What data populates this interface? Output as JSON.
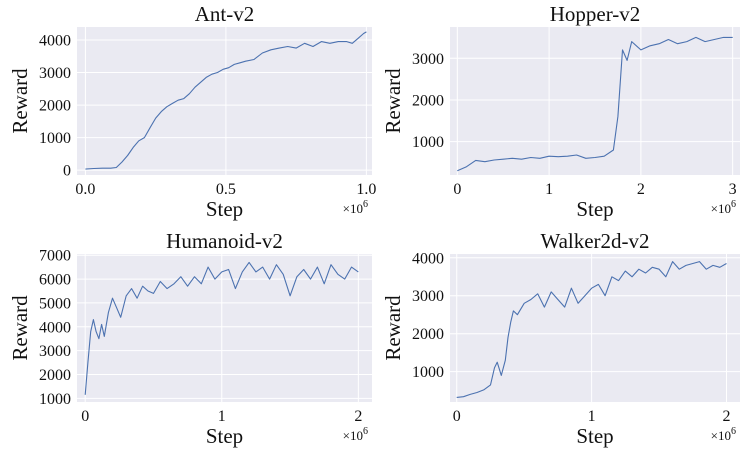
{
  "colors": {
    "plot_background": "#eaeaf2",
    "grid": "#ffffff",
    "series": "#4c72b0"
  },
  "chart_data": [
    {
      "type": "line",
      "title": "Ant-v2",
      "xlabel": "Step",
      "ylabel": "Reward",
      "x_scale_label": "×10",
      "x_scale_exp": "6",
      "xlim": [
        -0.03,
        1.02
      ],
      "ylim": [
        -150,
        4400
      ],
      "xticks": [
        0.0,
        0.5,
        1.0
      ],
      "xtick_labels": [
        "0.0",
        "0.5",
        "1.0"
      ],
      "yticks": [
        0,
        1000,
        2000,
        3000,
        4000
      ],
      "ytick_labels": [
        "0",
        "1000",
        "2000",
        "3000",
        "4000"
      ],
      "grid": true,
      "series": [
        {
          "x": [
            0.0,
            0.03,
            0.06,
            0.09,
            0.11,
            0.13,
            0.15,
            0.17,
            0.19,
            0.21,
            0.23,
            0.25,
            0.27,
            0.29,
            0.31,
            0.33,
            0.35,
            0.37,
            0.39,
            0.41,
            0.43,
            0.45,
            0.47,
            0.49,
            0.51,
            0.53,
            0.55,
            0.57,
            0.6,
            0.63,
            0.66,
            0.69,
            0.72,
            0.75,
            0.78,
            0.81,
            0.84,
            0.87,
            0.9,
            0.93,
            0.95,
            0.97,
            0.99,
            1.0
          ],
          "y": [
            30,
            50,
            60,
            60,
            80,
            250,
            450,
            700,
            900,
            1000,
            1300,
            1600,
            1800,
            1950,
            2050,
            2150,
            2200,
            2350,
            2550,
            2700,
            2850,
            2950,
            3000,
            3100,
            3150,
            3250,
            3300,
            3350,
            3400,
            3600,
            3700,
            3750,
            3800,
            3750,
            3900,
            3800,
            3950,
            3900,
            3950,
            3950,
            3900,
            4050,
            4200,
            4250
          ]
        }
      ]
    },
    {
      "type": "line",
      "title": "Hopper-v2",
      "xlabel": "Step",
      "ylabel": "Reward",
      "x_scale_label": "×10",
      "x_scale_exp": "6",
      "xlim": [
        -0.08,
        3.08
      ],
      "ylim": [
        200,
        3750
      ],
      "xticks": [
        0,
        1,
        2,
        3
      ],
      "xtick_labels": [
        "0",
        "1",
        "2",
        "3"
      ],
      "yticks": [
        1000,
        2000,
        3000
      ],
      "ytick_labels": [
        "1000",
        "2000",
        "3000"
      ],
      "grid": true,
      "series": [
        {
          "x": [
            0.0,
            0.1,
            0.2,
            0.3,
            0.4,
            0.5,
            0.6,
            0.7,
            0.8,
            0.9,
            1.0,
            1.1,
            1.2,
            1.3,
            1.4,
            1.5,
            1.6,
            1.7,
            1.75,
            1.8,
            1.85,
            1.9,
            2.0,
            2.1,
            2.2,
            2.3,
            2.4,
            2.5,
            2.6,
            2.7,
            2.8,
            2.9,
            3.0
          ],
          "y": [
            300,
            400,
            550,
            520,
            560,
            580,
            600,
            580,
            620,
            600,
            650,
            640,
            650,
            680,
            600,
            620,
            650,
            800,
            1600,
            3200,
            2950,
            3400,
            3200,
            3300,
            3350,
            3450,
            3350,
            3400,
            3500,
            3400,
            3450,
            3500,
            3500
          ]
        }
      ]
    },
    {
      "type": "line",
      "title": "Humanoid-v2",
      "xlabel": "Step",
      "ylabel": "Reward",
      "x_scale_label": "×10",
      "x_scale_exp": "6",
      "xlim": [
        -0.06,
        2.1
      ],
      "ylim": [
        850,
        7050
      ],
      "xticks": [
        0,
        1,
        2
      ],
      "xtick_labels": [
        "0",
        "1",
        "2"
      ],
      "yticks": [
        1000,
        2000,
        3000,
        4000,
        5000,
        6000,
        7000
      ],
      "ytick_labels": [
        "1000",
        "2000",
        "3000",
        "4000",
        "5000",
        "6000",
        "7000"
      ],
      "grid": true,
      "series": [
        {
          "x": [
            0.0,
            0.02,
            0.04,
            0.06,
            0.08,
            0.1,
            0.12,
            0.14,
            0.17,
            0.2,
            0.23,
            0.26,
            0.3,
            0.34,
            0.38,
            0.42,
            0.46,
            0.5,
            0.55,
            0.6,
            0.65,
            0.7,
            0.75,
            0.8,
            0.85,
            0.9,
            0.95,
            1.0,
            1.05,
            1.1,
            1.15,
            1.2,
            1.25,
            1.3,
            1.35,
            1.4,
            1.45,
            1.5,
            1.55,
            1.6,
            1.65,
            1.7,
            1.75,
            1.8,
            1.85,
            1.9,
            1.95,
            2.0
          ],
          "y": [
            1150,
            2500,
            3800,
            4300,
            3800,
            3500,
            4100,
            3600,
            4600,
            5200,
            4800,
            4400,
            5300,
            5600,
            5200,
            5700,
            5500,
            5400,
            5900,
            5600,
            5800,
            6100,
            5700,
            6100,
            5800,
            6500,
            6000,
            6300,
            6400,
            5600,
            6300,
            6700,
            6300,
            6500,
            6000,
            6600,
            6200,
            5300,
            6100,
            6400,
            6000,
            6500,
            5800,
            6600,
            6200,
            6000,
            6500,
            6300
          ]
        }
      ]
    },
    {
      "type": "line",
      "title": "Walker2d-v2",
      "xlabel": "Step",
      "ylabel": "Reward",
      "x_scale_label": "×10",
      "x_scale_exp": "6",
      "xlim": [
        -0.05,
        2.1
      ],
      "ylim": [
        200,
        4100
      ],
      "xticks": [
        0,
        1,
        2
      ],
      "xtick_labels": [
        "0",
        "1",
        "2"
      ],
      "yticks": [
        1000,
        2000,
        3000,
        4000
      ],
      "ytick_labels": [
        "1000",
        "2000",
        "3000",
        "4000"
      ],
      "grid": true,
      "series": [
        {
          "x": [
            0.0,
            0.05,
            0.1,
            0.15,
            0.2,
            0.25,
            0.28,
            0.3,
            0.33,
            0.36,
            0.38,
            0.4,
            0.42,
            0.45,
            0.5,
            0.55,
            0.6,
            0.65,
            0.7,
            0.75,
            0.8,
            0.85,
            0.9,
            0.95,
            1.0,
            1.05,
            1.1,
            1.15,
            1.2,
            1.25,
            1.3,
            1.35,
            1.4,
            1.45,
            1.5,
            1.55,
            1.6,
            1.65,
            1.7,
            1.75,
            1.8,
            1.85,
            1.9,
            1.95,
            2.0
          ],
          "y": [
            320,
            340,
            400,
            450,
            520,
            650,
            1100,
            1250,
            900,
            1300,
            1900,
            2300,
            2600,
            2500,
            2800,
            2900,
            3050,
            2700,
            3100,
            2900,
            2700,
            3200,
            2800,
            3000,
            3200,
            3300,
            3000,
            3500,
            3400,
            3650,
            3500,
            3700,
            3600,
            3750,
            3700,
            3500,
            3900,
            3700,
            3800,
            3850,
            3900,
            3700,
            3800,
            3750,
            3850
          ]
        }
      ]
    }
  ]
}
